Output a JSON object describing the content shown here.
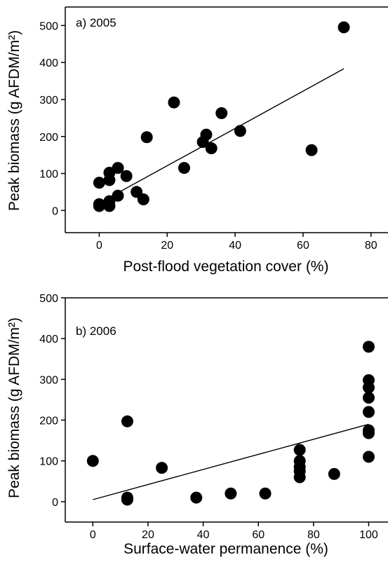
{
  "chart_data": [
    {
      "type": "scatter",
      "title": "a) 2005",
      "xlabel": "Post-flood vegetation cover (%)",
      "ylabel": "Peak biomass (g AFDM/m²)",
      "xlim": [
        -10,
        85
      ],
      "ylim": [
        -60,
        550
      ],
      "x_ticks": [
        0,
        20,
        40,
        60,
        80
      ],
      "x_tick_labels": [
        "0",
        "20",
        "40",
        "60",
        "80"
      ],
      "y_ticks": [
        0,
        100,
        200,
        300,
        400,
        500
      ],
      "y_tick_labels": [
        "0",
        "100",
        "200",
        "300",
        "400",
        "500"
      ],
      "grid": false,
      "points": [
        {
          "x": 0,
          "y": 75
        },
        {
          "x": 0,
          "y": 17
        },
        {
          "x": 0,
          "y": 12
        },
        {
          "x": 3,
          "y": 102
        },
        {
          "x": 3,
          "y": 82
        },
        {
          "x": 3,
          "y": 25
        },
        {
          "x": 3,
          "y": 12
        },
        {
          "x": 5.5,
          "y": 115
        },
        {
          "x": 5.5,
          "y": 40
        },
        {
          "x": 8,
          "y": 93
        },
        {
          "x": 11,
          "y": 50
        },
        {
          "x": 13,
          "y": 30
        },
        {
          "x": 14,
          "y": 198
        },
        {
          "x": 22,
          "y": 292
        },
        {
          "x": 25,
          "y": 115
        },
        {
          "x": 30.5,
          "y": 185
        },
        {
          "x": 31.5,
          "y": 205
        },
        {
          "x": 33,
          "y": 168
        },
        {
          "x": 36,
          "y": 263
        },
        {
          "x": 41.5,
          "y": 215
        },
        {
          "x": 62.5,
          "y": 163
        },
        {
          "x": 72,
          "y": 495
        }
      ],
      "fit_line": {
        "x": [
          0,
          72
        ],
        "y": [
          20,
          383
        ]
      }
    },
    {
      "type": "scatter",
      "title": "b) 2006",
      "xlabel": "Surface-water permanence (%)",
      "ylabel": "Peak biomass (g AFDM/m²)",
      "xlim": [
        -10,
        107
      ],
      "ylim": [
        -50,
        500
      ],
      "x_ticks": [
        0,
        20,
        40,
        60,
        80,
        100
      ],
      "x_tick_labels": [
        "0",
        "20",
        "40",
        "60",
        "80",
        "100"
      ],
      "y_ticks": [
        0,
        100,
        200,
        300,
        400,
        500
      ],
      "y_tick_labels": [
        "0",
        "100",
        "200",
        "300",
        "400",
        "500"
      ],
      "grid": false,
      "points": [
        {
          "x": 0,
          "y": 100
        },
        {
          "x": 12.5,
          "y": 197
        },
        {
          "x": 12.5,
          "y": 10
        },
        {
          "x": 12.5,
          "y": 5
        },
        {
          "x": 25,
          "y": 83
        },
        {
          "x": 37.5,
          "y": 10
        },
        {
          "x": 50,
          "y": 20
        },
        {
          "x": 62.5,
          "y": 20
        },
        {
          "x": 75,
          "y": 127
        },
        {
          "x": 75,
          "y": 100
        },
        {
          "x": 75,
          "y": 85
        },
        {
          "x": 75,
          "y": 75
        },
        {
          "x": 75,
          "y": 60
        },
        {
          "x": 87.5,
          "y": 68
        },
        {
          "x": 100,
          "y": 380
        },
        {
          "x": 100,
          "y": 298
        },
        {
          "x": 100,
          "y": 280
        },
        {
          "x": 100,
          "y": 255
        },
        {
          "x": 100,
          "y": 220
        },
        {
          "x": 100,
          "y": 175
        },
        {
          "x": 100,
          "y": 168
        },
        {
          "x": 100,
          "y": 110
        }
      ],
      "fit_line": {
        "x": [
          0,
          100
        ],
        "y": [
          5,
          190
        ]
      }
    }
  ]
}
